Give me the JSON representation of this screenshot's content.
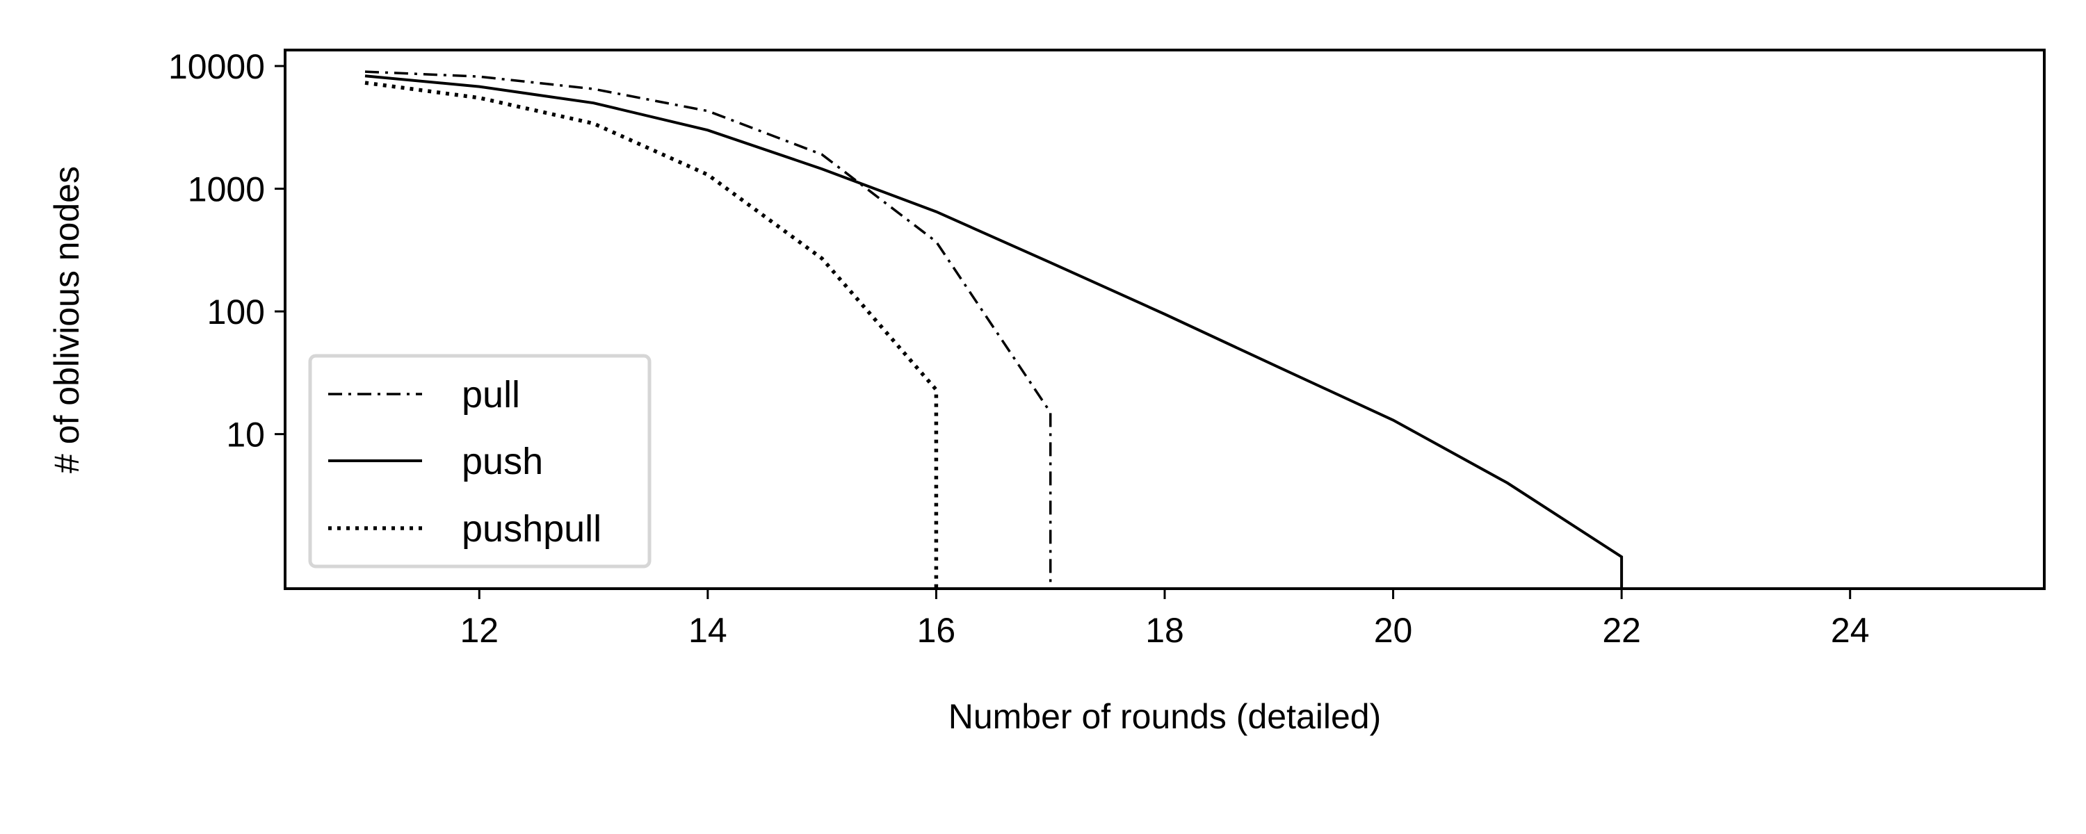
{
  "chart_data": {
    "type": "line",
    "xlabel": "Number of rounds (detailed)",
    "ylabel": "# of oblivious nodes",
    "yscale": "log",
    "xlim": [
      10.3,
      25.7
    ],
    "ylim": [
      0.55,
      13500
    ],
    "xticks": [
      12,
      14,
      16,
      18,
      20,
      22,
      24
    ],
    "xtick_labels": [
      "12",
      "14",
      "16",
      "18",
      "20",
      "22",
      "24"
    ],
    "yticks": [
      10,
      100,
      1000,
      10000
    ],
    "ytick_labels": [
      "10",
      "100",
      "1000",
      "10000"
    ],
    "grid": false,
    "legend_position": "lower-left",
    "series": [
      {
        "name": "pull",
        "linestyle": "dashdot",
        "color": "#000000",
        "x": [
          11,
          12,
          13,
          14,
          15,
          16,
          17,
          17
        ],
        "y": [
          9000,
          8200,
          6500,
          4300,
          1900,
          370,
          15,
          0.55
        ]
      },
      {
        "name": "push",
        "linestyle": "solid",
        "color": "#000000",
        "x": [
          11,
          12,
          13,
          14,
          15,
          16,
          17,
          18,
          19,
          20,
          21,
          22,
          22
        ],
        "y": [
          8300,
          6800,
          5000,
          3000,
          1450,
          650,
          250,
          95,
          35,
          13,
          4,
          1,
          0.55
        ]
      },
      {
        "name": "pushpull",
        "linestyle": "dotted",
        "color": "#000000",
        "x": [
          11,
          12,
          13,
          14,
          15,
          16,
          16
        ],
        "y": [
          7300,
          5500,
          3400,
          1300,
          270,
          23,
          0.55
        ]
      }
    ]
  }
}
